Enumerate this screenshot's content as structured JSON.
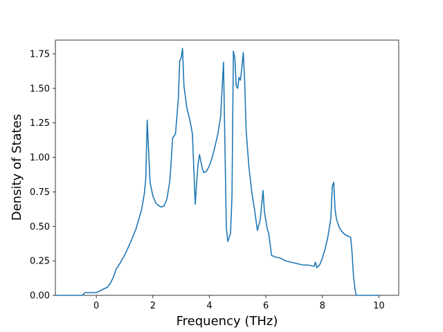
{
  "chart_data": {
    "type": "line",
    "title": "",
    "xlabel": "Frequency (THz)",
    "ylabel": "Density of States",
    "xlim": [
      -1.45,
      10.7
    ],
    "ylim": [
      0.0,
      1.85
    ],
    "x_ticks": [
      0,
      2,
      4,
      6,
      8,
      10
    ],
    "x_tick_labels": [
      "0",
      "2",
      "4",
      "6",
      "8",
      "10"
    ],
    "y_ticks": [
      0.0,
      0.25,
      0.5,
      0.75,
      1.0,
      1.25,
      1.5,
      1.75
    ],
    "y_tick_labels": [
      "0.00",
      "0.25",
      "0.50",
      "0.75",
      "1.00",
      "1.25",
      "1.50",
      "1.75"
    ],
    "grid": false,
    "legend": "none",
    "line_color": "#1f77b4",
    "series": [
      {
        "x": [
          -1.45,
          -0.5,
          -0.45,
          -0.4,
          0.0,
          0.1,
          0.2,
          0.3,
          0.4,
          0.5,
          0.6,
          0.7,
          0.8,
          1.0,
          1.2,
          1.3,
          1.4,
          1.5,
          1.6,
          1.65,
          1.7,
          1.75,
          1.8,
          1.9,
          2.0,
          2.1,
          2.2,
          2.3,
          2.4,
          2.5,
          2.6,
          2.65,
          2.7,
          2.8,
          2.9,
          2.95,
          3.0,
          3.05,
          3.1,
          3.2,
          3.3,
          3.4,
          3.5,
          3.55,
          3.6,
          3.65,
          3.7,
          3.75,
          3.8,
          3.9,
          4.0,
          4.1,
          4.2,
          4.3,
          4.4,
          4.5,
          4.6,
          4.65,
          4.7,
          4.75,
          4.8,
          4.85,
          4.9,
          4.95,
          5.0,
          5.05,
          5.1,
          5.15,
          5.2,
          5.25,
          5.3,
          5.35,
          5.4,
          5.5,
          5.6,
          5.7,
          5.8,
          5.9,
          5.95,
          6.0,
          6.05,
          6.1,
          6.2,
          6.3,
          6.5,
          6.7,
          6.9,
          7.1,
          7.3,
          7.5,
          7.7,
          7.75,
          7.8,
          7.9,
          8.0,
          8.1,
          8.2,
          8.3,
          8.35,
          8.4,
          8.45,
          8.5,
          8.6,
          8.7,
          8.8,
          8.9,
          9.0,
          9.05,
          9.1,
          9.15,
          9.2,
          9.3,
          10.0
        ],
        "y": [
          0.0,
          0.0,
          0.01,
          0.02,
          0.02,
          0.03,
          0.04,
          0.05,
          0.06,
          0.09,
          0.13,
          0.19,
          0.22,
          0.29,
          0.38,
          0.43,
          0.48,
          0.55,
          0.62,
          0.68,
          0.74,
          0.85,
          1.27,
          0.82,
          0.72,
          0.67,
          0.65,
          0.64,
          0.65,
          0.7,
          0.83,
          0.98,
          1.14,
          1.17,
          1.42,
          1.7,
          1.72,
          1.79,
          1.52,
          1.36,
          1.28,
          1.17,
          0.66,
          0.82,
          0.95,
          1.02,
          0.97,
          0.92,
          0.89,
          0.9,
          0.94,
          1.0,
          1.08,
          1.17,
          1.3,
          1.69,
          0.49,
          0.39,
          0.42,
          0.45,
          0.72,
          1.77,
          1.72,
          1.52,
          1.5,
          1.58,
          1.56,
          1.65,
          1.76,
          1.55,
          1.2,
          1.06,
          0.93,
          0.75,
          0.62,
          0.47,
          0.55,
          0.76,
          0.6,
          0.54,
          0.48,
          0.45,
          0.29,
          0.28,
          0.27,
          0.25,
          0.24,
          0.23,
          0.22,
          0.22,
          0.21,
          0.24,
          0.2,
          0.22,
          0.27,
          0.34,
          0.43,
          0.56,
          0.79,
          0.82,
          0.62,
          0.55,
          0.49,
          0.46,
          0.44,
          0.43,
          0.42,
          0.31,
          0.14,
          0.05,
          0.0,
          0.0,
          0.0
        ]
      }
    ]
  }
}
